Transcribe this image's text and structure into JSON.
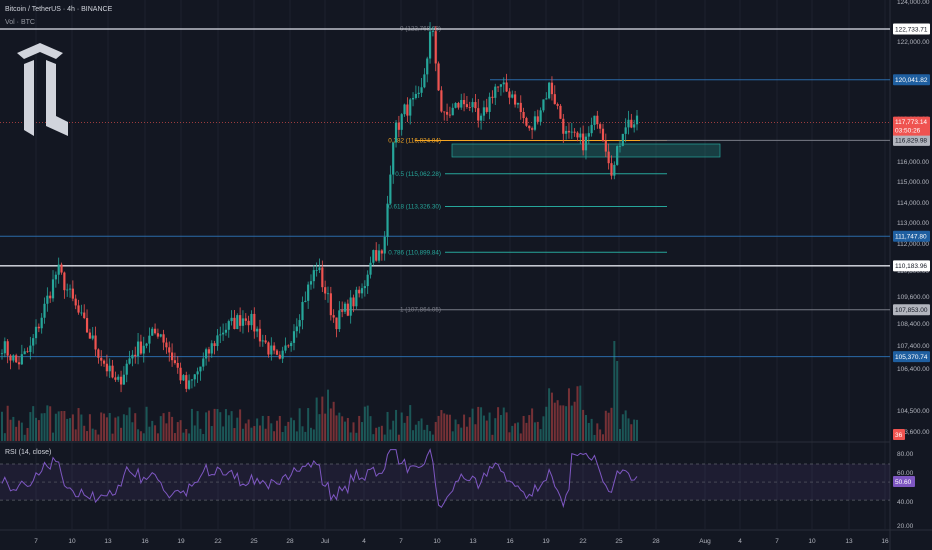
{
  "header": {
    "symbol": "Bitcoin / TetherUS · 4h · BINANCE",
    "volume_label": "Vol · BTC",
    "rsi_label": "RSI (14, close)"
  },
  "colors": {
    "background": "#131722",
    "up": "#26a69a",
    "down": "#ef5350",
    "rsi_line": "#7e57c2",
    "rsi_band": "rgba(126,87,194,0.10)",
    "level_blue": "#2a6aa8",
    "level_white": "#e0e3eb",
    "fib_orange": "#f5a623",
    "fib_green": "#26a69a",
    "zone_fill": "rgba(38,166,154,0.28)"
  },
  "logo": {
    "icon": "tc-logo-icon"
  },
  "price_axis": {
    "ticks": [
      "124,000.00",
      "122,000.00",
      "118,000.00",
      "116,000.00",
      "115,000.00",
      "114,000.00",
      "113,000.00",
      "112,000.00",
      "110,800.00",
      "109,600.00",
      "108,400.00",
      "107,400.00",
      "106,400.00",
      "104,500.00",
      "103,600.00"
    ]
  },
  "levels": [
    {
      "price": 122733.71,
      "label": "122,733.71",
      "style": "white"
    },
    {
      "price": 120041.82,
      "label": "120,041.82",
      "style": "blue"
    },
    {
      "price": 116829.98,
      "label": "116,829.98",
      "style": "gray"
    },
    {
      "price": 111747.8,
      "label": "111,747.80",
      "style": "blue"
    },
    {
      "price": 110183.96,
      "label": "110,183.96",
      "style": "white"
    },
    {
      "price": 107853.0,
      "label": "107,853.00",
      "style": "gray"
    },
    {
      "price": 105370.74,
      "label": "105,370.74",
      "style": "blue"
    }
  ],
  "current_price": {
    "label": "117,773.14",
    "countdown": "03:50:26"
  },
  "volume_badge": "36",
  "fib": [
    {
      "ratio": "0",
      "label": "0 (122,768.08)",
      "price": 122768.08
    },
    {
      "ratio": "0.382",
      "label": "0.382 (116,824.84)",
      "price": 116824.84
    },
    {
      "ratio": "0.5",
      "label": "0.5 (115,062.28)",
      "price": 115062.28
    },
    {
      "ratio": "0.618",
      "label": "0.618 (113,326.30)",
      "price": 113326.3
    },
    {
      "ratio": "0.786",
      "label": "0.786 (110,899.84)",
      "price": 110899.84
    },
    {
      "ratio": "1",
      "label": "1 (107,864.05)",
      "price": 107864.05
    }
  ],
  "rsi": {
    "ticks": [
      "80.00",
      "60.00",
      "40.00",
      "20.00"
    ],
    "value_label": "50.60",
    "upper": 70,
    "lower": 30
  },
  "time_axis": {
    "ticks": [
      "7",
      "10",
      "13",
      "16",
      "19",
      "22",
      "25",
      "28",
      "Jul",
      "4",
      "7",
      "10",
      "13",
      "16",
      "19",
      "22",
      "25",
      "28",
      "Aug",
      "4",
      "7",
      "10",
      "13",
      "16"
    ]
  }
}
